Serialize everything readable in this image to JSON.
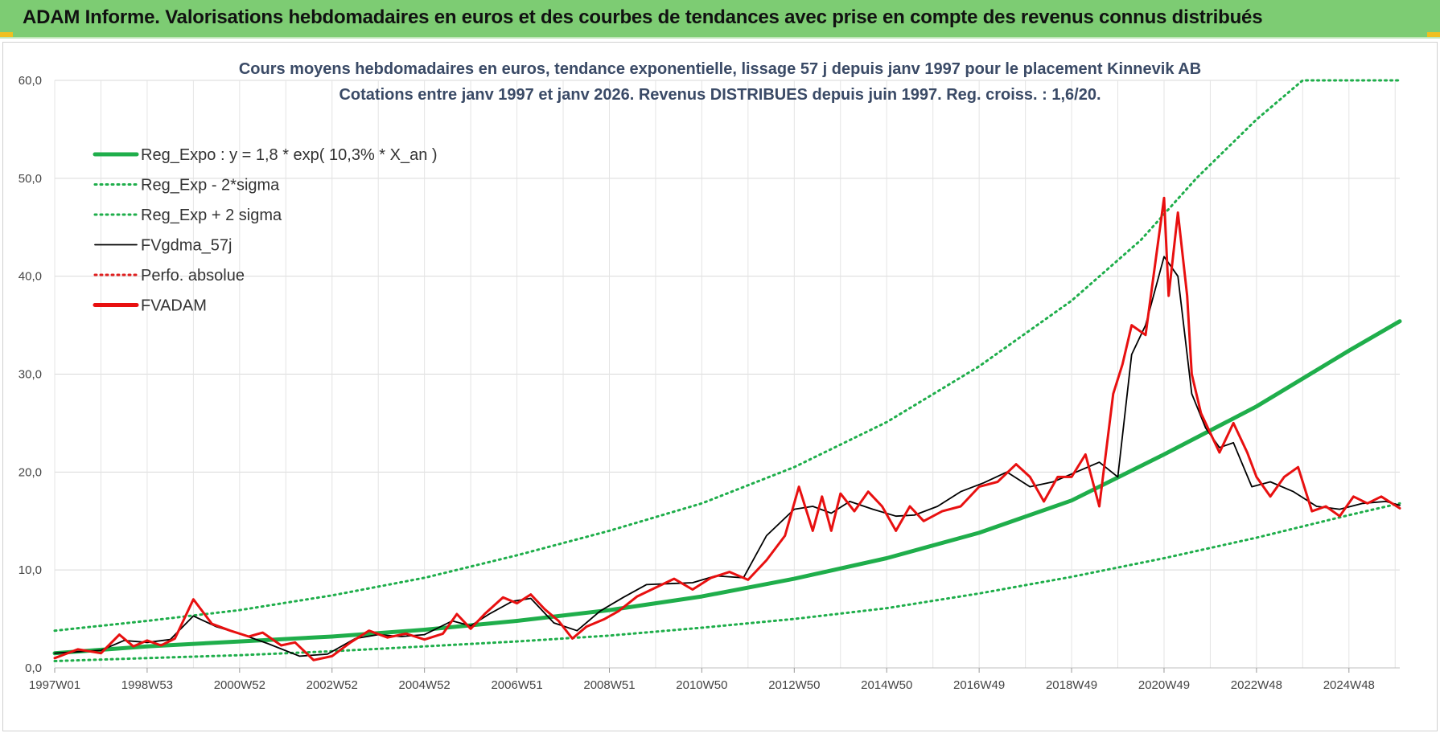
{
  "banner": {
    "title": "ADAM Informe. Valorisations hebdomadaires en euros et des courbes de tendances avec prise en compte des revenus connus distribués",
    "bg_color": "#7dcc73"
  },
  "chart_data": {
    "type": "line",
    "title_line1": "Cours moyens hebdomadaires en euros, tendance exponentielle, lissage 57 j depuis janv 1997 pour le placement Kinnevik AB",
    "title_line2": "Cotations entre janv 1997 et janv 2026. Revenus DISTRIBUES depuis juin 1997. Reg. croiss. : 1,6/20.",
    "xlabel": "",
    "ylabel": "",
    "xlim": [
      1997.0,
      2026.1
    ],
    "ylim": [
      0,
      60
    ],
    "grid": true,
    "legend_position": "top-left",
    "y_ticks": [
      "0,0",
      "10,0",
      "20,0",
      "30,0",
      "40,0",
      "50,0",
      "60,0"
    ],
    "x_ticks": [
      {
        "year": 1997.0,
        "label": "1997W01"
      },
      {
        "year": 1999.0,
        "label": "1998W53"
      },
      {
        "year": 2001.0,
        "label": "2000W52"
      },
      {
        "year": 2003.0,
        "label": "2002W52"
      },
      {
        "year": 2005.0,
        "label": "2004W52"
      },
      {
        "year": 2007.0,
        "label": "2006W51"
      },
      {
        "year": 2009.0,
        "label": "2008W51"
      },
      {
        "year": 2011.0,
        "label": "2010W50"
      },
      {
        "year": 2013.0,
        "label": "2012W50"
      },
      {
        "year": 2015.0,
        "label": "2014W50"
      },
      {
        "year": 2017.0,
        "label": "2016W49"
      },
      {
        "year": 2019.0,
        "label": "2018W49"
      },
      {
        "year": 2021.0,
        "label": "2020W49"
      },
      {
        "year": 2023.0,
        "label": "2022W48"
      },
      {
        "year": 2025.0,
        "label": "2024W48"
      }
    ],
    "series": [
      {
        "name": "Reg_Expo : y = 1,8 * exp( 10,3% *  X_an )",
        "color": "#1fae4b",
        "style": "solid-thick",
        "x": [
          1997.0,
          1999.0,
          2001.0,
          2003.0,
          2005.0,
          2007.0,
          2009.0,
          2011.0,
          2013.0,
          2015.0,
          2017.0,
          2019.0,
          2021.0,
          2023.0,
          2025.0,
          2026.1
        ],
        "values": [
          1.5,
          2.2,
          2.7,
          3.2,
          3.9,
          4.8,
          5.9,
          7.3,
          9.1,
          11.2,
          13.8,
          17.1,
          21.8,
          26.7,
          32.4,
          35.4
        ]
      },
      {
        "name": "Reg_Exp - 2*sigma",
        "color": "#1fae4b",
        "style": "dotted",
        "x": [
          1997.0,
          1999.0,
          2001.0,
          2003.0,
          2005.0,
          2007.0,
          2009.0,
          2011.0,
          2013.0,
          2015.0,
          2017.0,
          2019.0,
          2021.0,
          2023.0,
          2025.0,
          2026.1
        ],
        "values": [
          0.7,
          1.0,
          1.3,
          1.7,
          2.2,
          2.7,
          3.3,
          4.1,
          5.0,
          6.1,
          7.6,
          9.3,
          11.2,
          13.3,
          15.6,
          16.8
        ]
      },
      {
        "name": "Reg_Exp + 2 sigma",
        "color": "#1fae4b",
        "style": "dotted",
        "x": [
          1997.0,
          1999.0,
          2001.0,
          2003.0,
          2005.0,
          2007.0,
          2009.0,
          2011.0,
          2013.0,
          2015.0,
          2017.0,
          2019.0,
          2020.5,
          2021.7,
          2023.0,
          2024.0,
          2025.0,
          2026.1
        ],
        "values": [
          3.8,
          4.8,
          5.9,
          7.4,
          9.2,
          11.5,
          14.0,
          16.8,
          20.5,
          25.1,
          30.8,
          37.5,
          43.7,
          50.0,
          56.0,
          60.0,
          60.0,
          60.0
        ]
      },
      {
        "name": "FVgdma_57j",
        "color": "#000000",
        "style": "solid-thin",
        "x": [
          1997.0,
          1998.0,
          1998.5,
          1999.0,
          1999.5,
          2000.0,
          2000.5,
          2001.0,
          2001.6,
          2002.3,
          2002.9,
          2003.5,
          2004.0,
          2004.5,
          2005.0,
          2005.6,
          2006.0,
          2006.4,
          2006.9,
          2007.3,
          2007.8,
          2008.3,
          2008.8,
          2009.3,
          2009.8,
          2010.3,
          2010.8,
          2011.3,
          2011.9,
          2012.4,
          2013.0,
          2013.4,
          2013.8,
          2014.2,
          2014.7,
          2015.2,
          2015.6,
          2016.1,
          2016.6,
          2017.1,
          2017.6,
          2018.1,
          2018.6,
          2019.1,
          2019.6,
          2020.0,
          2020.3,
          2020.6,
          2021.0,
          2021.3,
          2021.6,
          2021.9,
          2022.2,
          2022.5,
          2022.9,
          2023.3,
          2023.8,
          2024.3,
          2024.8,
          2025.3,
          2025.8,
          2026.1
        ],
        "values": [
          1.5,
          1.8,
          2.8,
          2.6,
          2.9,
          5.3,
          4.2,
          3.5,
          2.5,
          1.2,
          1.4,
          3.0,
          3.4,
          3.2,
          3.4,
          4.8,
          4.3,
          5.5,
          6.8,
          7.1,
          4.6,
          3.8,
          5.8,
          7.2,
          8.5,
          8.6,
          8.7,
          9.4,
          9.2,
          13.5,
          16.2,
          16.5,
          15.8,
          17.0,
          16.2,
          15.5,
          15.6,
          16.5,
          18.0,
          18.9,
          20.0,
          18.5,
          19.0,
          20.0,
          21.0,
          19.5,
          32.0,
          35.0,
          42.0,
          40.0,
          28.0,
          24.5,
          22.5,
          23.0,
          18.5,
          19.0,
          18.0,
          16.5,
          16.2,
          16.8,
          17.0,
          16.6
        ]
      },
      {
        "name": "Perfo. absolue",
        "color": "#e02020",
        "style": "dotted",
        "x": [],
        "values": []
      },
      {
        "name": "FVADAM",
        "color": "#e81010",
        "style": "solid-thick",
        "x": [
          1997.0,
          1997.5,
          1998.0,
          1998.4,
          1998.7,
          1999.0,
          1999.3,
          1999.6,
          2000.0,
          2000.4,
          2000.8,
          2001.2,
          2001.5,
          2001.9,
          2002.2,
          2002.6,
          2003.0,
          2003.4,
          2003.8,
          2004.2,
          2004.6,
          2005.0,
          2005.4,
          2005.7,
          2006.0,
          2006.3,
          2006.7,
          2007.0,
          2007.3,
          2007.6,
          2007.9,
          2008.2,
          2008.5,
          2008.9,
          2009.2,
          2009.6,
          2010.0,
          2010.4,
          2010.8,
          2011.2,
          2011.6,
          2012.0,
          2012.4,
          2012.8,
          2013.1,
          2013.4,
          2013.6,
          2013.8,
          2014.0,
          2014.3,
          2014.6,
          2014.9,
          2015.2,
          2015.5,
          2015.8,
          2016.2,
          2016.6,
          2017.0,
          2017.4,
          2017.8,
          2018.1,
          2018.4,
          2018.7,
          2019.0,
          2019.3,
          2019.6,
          2019.9,
          2020.1,
          2020.3,
          2020.6,
          2020.8,
          2021.0,
          2021.1,
          2021.3,
          2021.5,
          2021.6,
          2021.8,
          2022.0,
          2022.2,
          2022.5,
          2022.8,
          2023.0,
          2023.3,
          2023.6,
          2023.9,
          2024.2,
          2024.5,
          2024.8,
          2025.1,
          2025.4,
          2025.7,
          2026.1
        ],
        "values": [
          1.0,
          1.9,
          1.5,
          3.4,
          2.2,
          2.8,
          2.3,
          3.0,
          7.0,
          4.5,
          3.8,
          3.2,
          3.6,
          2.3,
          2.6,
          0.8,
          1.2,
          2.6,
          3.8,
          3.1,
          3.5,
          2.9,
          3.5,
          5.5,
          4.0,
          5.5,
          7.2,
          6.6,
          7.5,
          6.0,
          4.8,
          3.0,
          4.2,
          5.0,
          5.8,
          7.3,
          8.2,
          9.1,
          8.0,
          9.2,
          9.8,
          9.0,
          11.0,
          13.5,
          18.5,
          14.0,
          17.5,
          14.0,
          17.8,
          16.0,
          18.0,
          16.5,
          14.0,
          16.5,
          15.0,
          16.0,
          16.5,
          18.5,
          19.0,
          20.8,
          19.5,
          17.0,
          19.5,
          19.5,
          21.8,
          16.5,
          28.0,
          31.0,
          35.0,
          34.0,
          41.0,
          48.0,
          38.0,
          46.5,
          38.0,
          30.0,
          26.0,
          24.0,
          22.0,
          25.0,
          22.0,
          19.5,
          17.5,
          19.5,
          20.5,
          16.0,
          16.5,
          15.5,
          17.5,
          16.8,
          17.5,
          16.3
        ]
      }
    ]
  }
}
